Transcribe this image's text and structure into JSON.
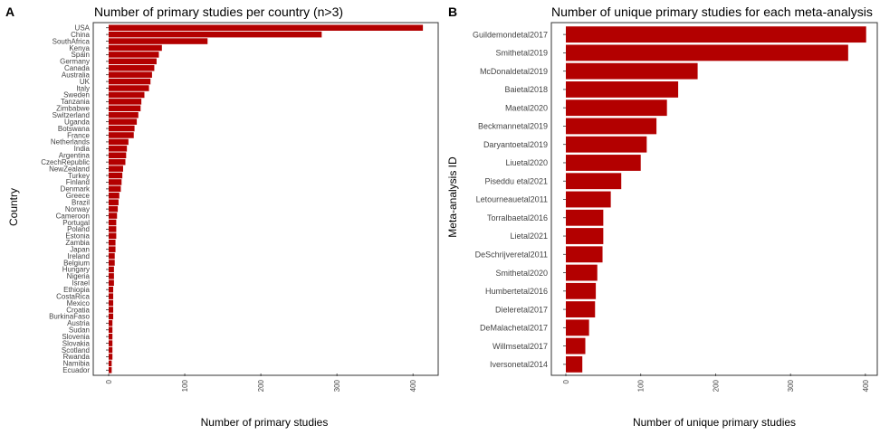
{
  "figure": {
    "bar_color": "#b30000",
    "panel_border_color": "#333333"
  },
  "chart_data": [
    {
      "type": "bar",
      "orientation": "horizontal",
      "panel_label": "A",
      "title": "Number of primary studies per country (n>3)",
      "xlabel": "Number of primary studies",
      "ylabel": "Country",
      "xlim": [
        0,
        420
      ],
      "xticks": [
        "0",
        "100",
        "200",
        "300",
        "400"
      ],
      "grid": false,
      "categories": [
        "USA",
        "China",
        "SouthAfrica",
        "Kenya",
        "Spain",
        "Germany",
        "Canada",
        "Australia",
        "UK",
        "Italy",
        "Sweden",
        "Tanzania",
        "Zimbabwe",
        "Switzerland",
        "Uganda",
        "Botswana",
        "France",
        "Netherlands",
        "India",
        "Argentina",
        "CzechRepublic",
        "NewZealand",
        "Turkey",
        "Finland",
        "Denmark",
        "Greece",
        "Brazil",
        "Norway",
        "Cameroon",
        "Portugal",
        "Poland",
        "Estonia",
        "Zambia",
        "Japan",
        "Ireland",
        "Belgium",
        "Hungary",
        "Nigeria",
        "Israel",
        "Ethiopia",
        "CostaRica",
        "Mexico",
        "Croatia",
        "BurkinaFaso",
        "Austria",
        "Sudan",
        "Slovenia",
        "Slovakia",
        "Scotland",
        "Rwanda",
        "Namibia",
        "Ecuador"
      ],
      "values": [
        413,
        280,
        130,
        70,
        66,
        63,
        60,
        57,
        55,
        53,
        47,
        43,
        42,
        39,
        37,
        34,
        33,
        26,
        24,
        23,
        22,
        19,
        18,
        17,
        16,
        14,
        13,
        12,
        11,
        10,
        10,
        10,
        9,
        9,
        8,
        8,
        7,
        7,
        7,
        6,
        6,
        6,
        6,
        6,
        5,
        5,
        5,
        5,
        5,
        5,
        4,
        4
      ]
    },
    {
      "type": "bar",
      "orientation": "horizontal",
      "panel_label": "B",
      "title": "Number of unique primary studies for each meta-analysis",
      "xlabel": "Number of unique primary studies",
      "ylabel": "Meta-analysis ID",
      "xlim": [
        0,
        405
      ],
      "xticks": [
        "0",
        "100",
        "200",
        "300",
        "400"
      ],
      "grid": false,
      "categories": [
        "Guildemondetal2017",
        "Smithetal2019",
        "McDonaldetal2019",
        "Baietal2018",
        "Maetal2020",
        "Beckmannetal2019",
        "Daryantoetal2019",
        "Liuetal2020",
        "Piseddu etal2021",
        "Letourneauetal2011",
        "Torralbaetal2016",
        "Lietal2021",
        "DeSchrijveretal2011",
        "Smithetal2020",
        "Humbertetal2016",
        "Dieleretal2017",
        "DeMalachetal2017",
        "Willmsetal2017",
        "Iversonetal2014"
      ],
      "values": [
        401,
        377,
        176,
        150,
        135,
        121,
        108,
        100,
        74,
        60,
        50,
        50,
        49,
        42,
        40,
        39,
        31,
        26,
        22
      ]
    }
  ]
}
